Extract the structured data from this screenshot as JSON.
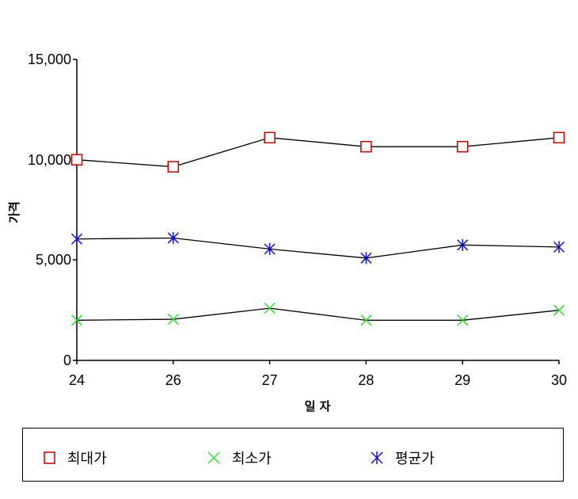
{
  "chart_data": {
    "type": "line",
    "categories": [
      "24",
      "26",
      "27",
      "28",
      "29",
      "30"
    ],
    "xlabel": "일 자",
    "ylabel": "가격",
    "ylim": [
      0,
      15000
    ],
    "yticks": [
      0,
      5000,
      10000,
      15000
    ],
    "ytick_labels": [
      "0",
      "5,000",
      "10,000",
      "15,000"
    ],
    "grid": false,
    "legend_position": "bottom",
    "series": [
      {
        "name": "최대가",
        "marker": "square",
        "color": "#c00000",
        "values": [
          10000,
          9650,
          11100,
          10650,
          10650,
          11100
        ]
      },
      {
        "name": "최소가",
        "marker": "x",
        "color": "#33dd33",
        "values": [
          2000,
          2050,
          2600,
          2000,
          2000,
          2500
        ]
      },
      {
        "name": "평균가",
        "marker": "asterisk",
        "color": "#1010cc",
        "values": [
          6050,
          6100,
          5550,
          5100,
          5750,
          5650
        ]
      }
    ]
  }
}
